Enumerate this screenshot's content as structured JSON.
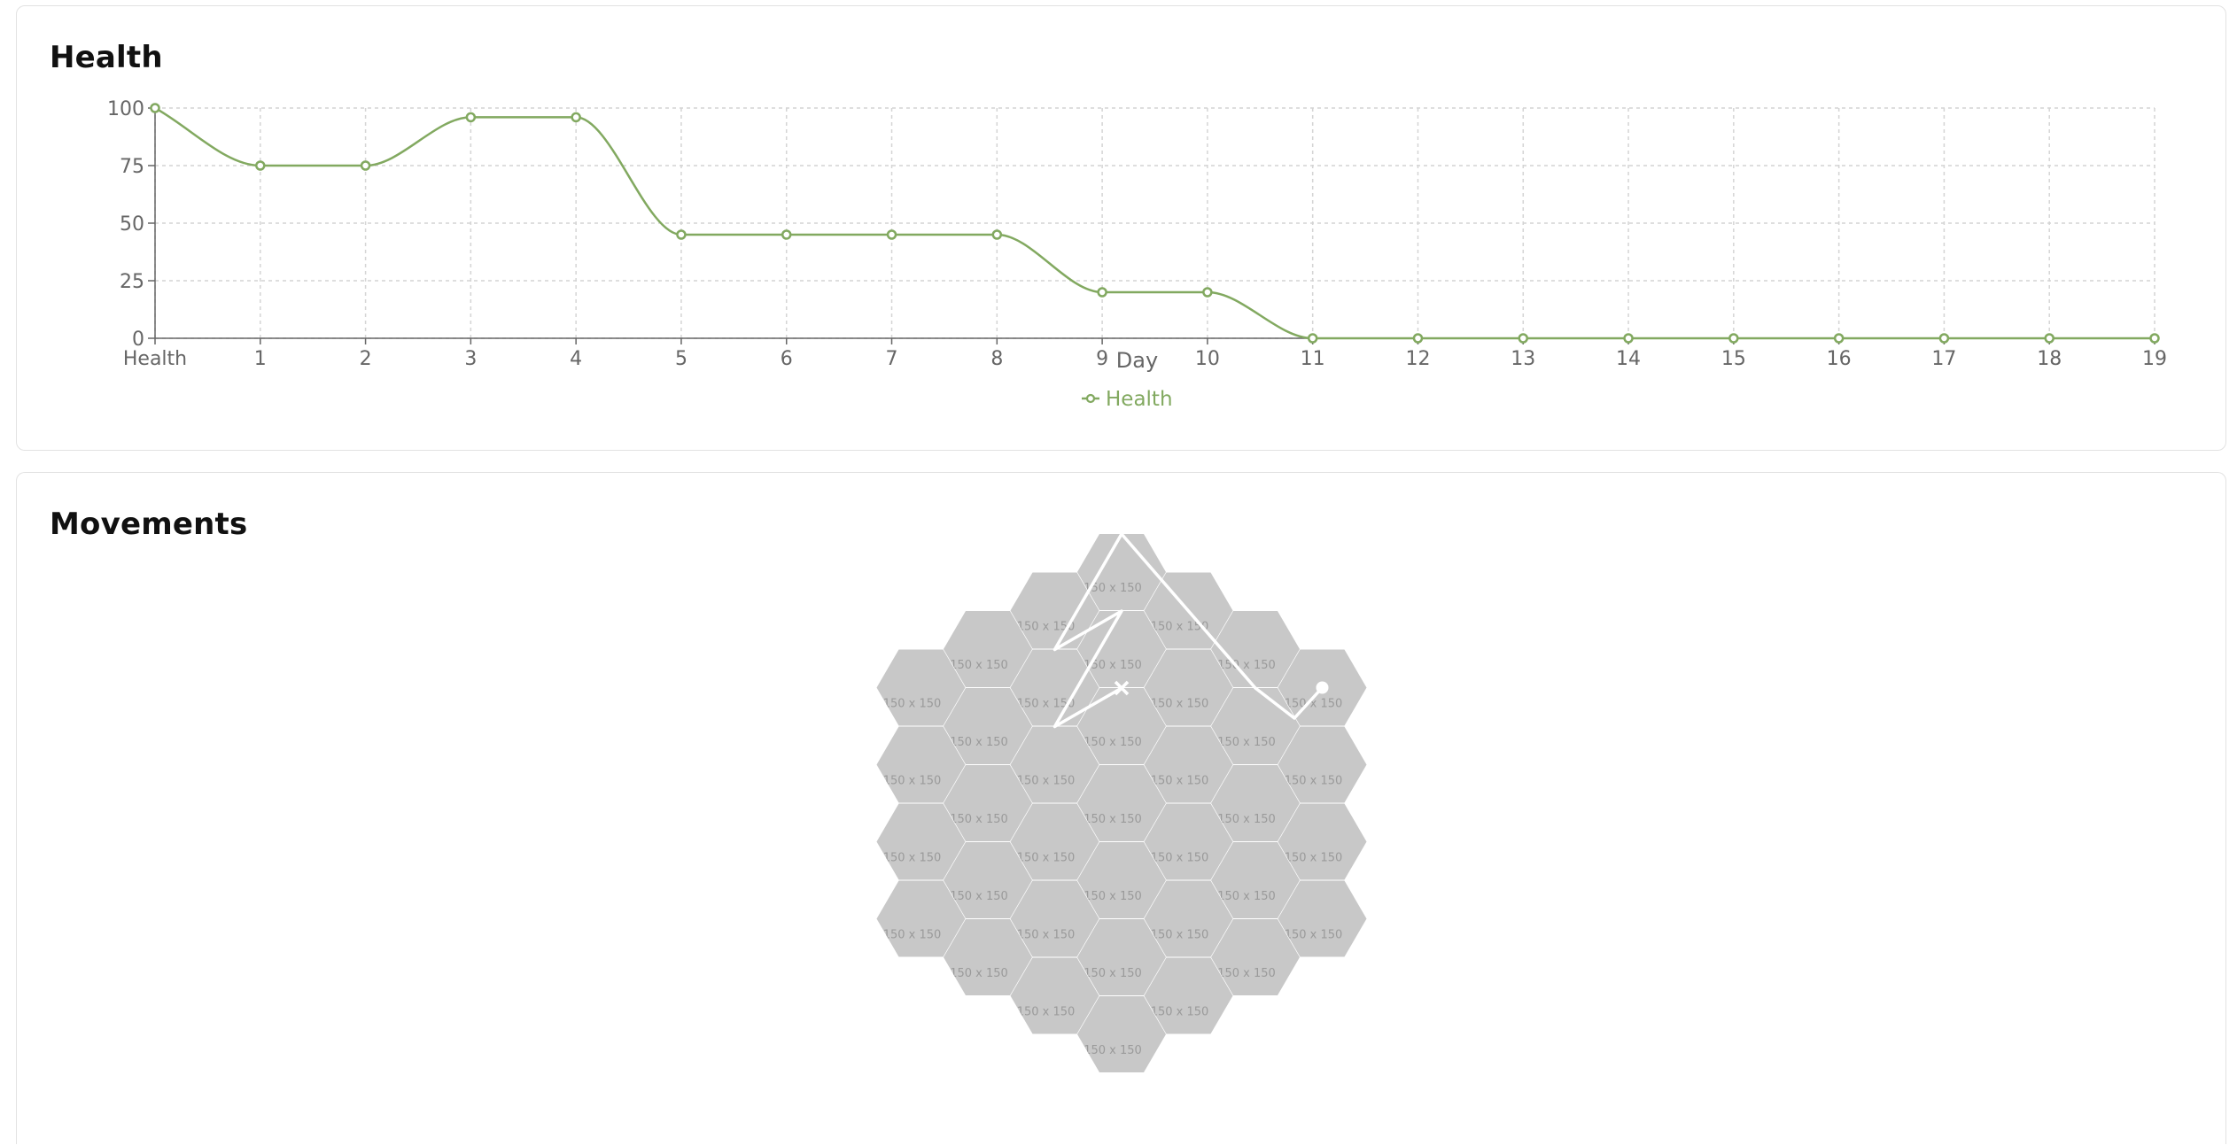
{
  "health_card": {
    "title": "Health"
  },
  "movements_card": {
    "title": "Movements"
  },
  "chart_data": {
    "type": "line",
    "title": "",
    "xlabel": "Day",
    "ylabel": "",
    "x": [
      "Health",
      "1",
      "2",
      "3",
      "4",
      "5",
      "6",
      "7",
      "8",
      "9",
      "10",
      "11",
      "12",
      "13",
      "14",
      "15",
      "16",
      "17",
      "18",
      "19"
    ],
    "series": [
      {
        "name": "Health",
        "values": [
          100,
          75,
          75,
          96,
          96,
          45,
          45,
          45,
          45,
          20,
          20,
          0,
          0,
          0,
          0,
          0,
          0,
          0,
          0,
          0
        ]
      }
    ],
    "yticks": [
      "0",
      "25",
      "50",
      "75",
      "100"
    ],
    "ylim": [
      0,
      100
    ],
    "grid": true,
    "legend": "bottom-center",
    "line_color": "#82a960"
  },
  "hex_map": {
    "tile_label": "150 x 150",
    "tile_color": "#c8c8c8",
    "path_color": "#ffffff",
    "start_marker": "dot",
    "end_marker": "x-mark"
  }
}
